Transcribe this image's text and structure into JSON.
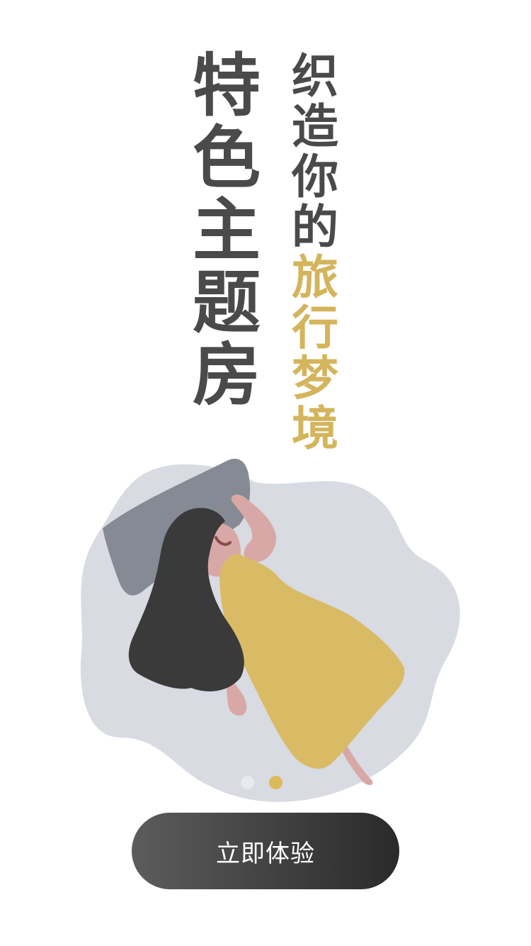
{
  "headline": {
    "primary_chars": [
      "特",
      "色",
      "主",
      "题",
      "房"
    ],
    "secondary_chars": [
      {
        "char": "织",
        "accent": false
      },
      {
        "char": "造",
        "accent": false
      },
      {
        "char": "你",
        "accent": false
      },
      {
        "char": "的",
        "accent": false
      },
      {
        "char": "旅",
        "accent": true
      },
      {
        "char": "行",
        "accent": true
      },
      {
        "char": "梦",
        "accent": true
      },
      {
        "char": "境",
        "accent": true
      }
    ]
  },
  "colors": {
    "text_dark": "#4a4a4a",
    "accent": "#d4b45c",
    "blob": "#d8dbe1",
    "pillow": "#868a94",
    "hair": "#3a3a3a",
    "dress": "#d9bb66",
    "skin": "#d8a8a6",
    "button_start": "#5c5c5c",
    "button_end": "#2a2a2a"
  },
  "pager": {
    "active_index": 1,
    "count": 2
  },
  "cta": {
    "label": "立即体验"
  }
}
